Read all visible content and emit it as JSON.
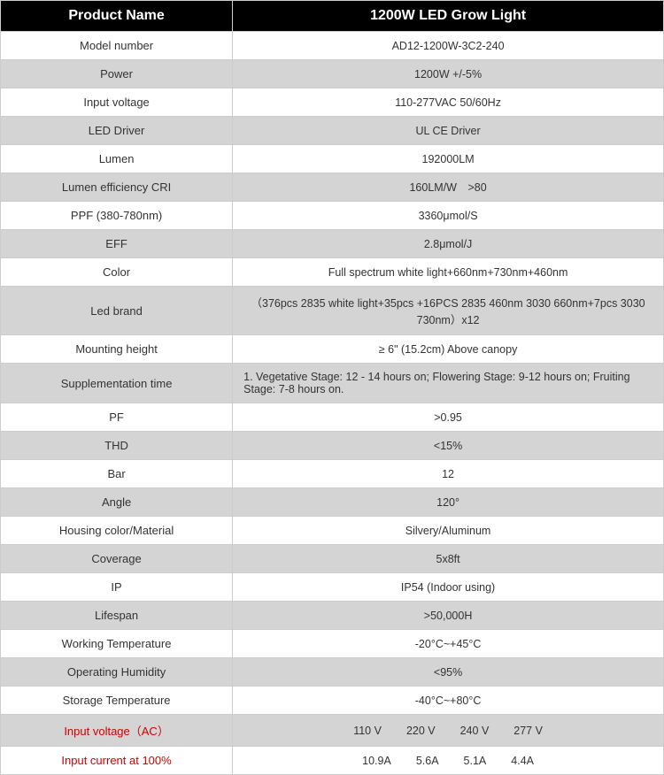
{
  "table": {
    "header": {
      "label": "Product Name",
      "value": "1200W LED Grow Light"
    },
    "colors": {
      "header_bg": "#000000",
      "header_text": "#ffffff",
      "alt_row_bg": "#d4d4d4",
      "white_row_bg": "#ffffff",
      "border": "#cccccc",
      "text": "#333333",
      "red_text": "#d00000"
    },
    "column_widths": [
      "35%",
      "65%"
    ],
    "rows": [
      {
        "label": "Model number",
        "value": "AD12-1200W-3C2-240",
        "bg": "white"
      },
      {
        "label": "Power",
        "value": "1200W +/-5%",
        "bg": "alt"
      },
      {
        "label": "Input voltage",
        "value": "110-277VAC 50/60Hz",
        "bg": "white"
      },
      {
        "label": "LED Driver",
        "value": "UL CE Driver",
        "bg": "alt"
      },
      {
        "label": "Lumen",
        "value": "192000LM",
        "bg": "white"
      },
      {
        "label": "Lumen efficiency CRI",
        "value": "160LM/W >80",
        "bg": "alt"
      },
      {
        "label": "PPF (380-780nm)",
        "value": "3360μmol/S",
        "bg": "white"
      },
      {
        "label": "EFF",
        "value": "2.8μmol/J",
        "bg": "alt"
      },
      {
        "label": "Color",
        "value": "Full spectrum white light+660nm+730nm+460nm",
        "bg": "white"
      },
      {
        "label": "Led brand",
        "value": "（376pcs 2835 white light+35pcs +16PCS 2835 460nm 3030 660nm+7pcs 3030 730nm）x12",
        "bg": "alt"
      },
      {
        "label": "Mounting height",
        "value": "≥ 6\" (15.2cm) Above canopy",
        "bg": "white"
      },
      {
        "label": "Supplementation time",
        "value": "1. Vegetative Stage: 12 - 14 hours on; Flowering Stage: 9-12 hours on; Fruiting Stage: 7-8 hours on.",
        "bg": "alt",
        "left": true
      },
      {
        "label": "PF",
        "value": ">0.95",
        "bg": "white"
      },
      {
        "label": "THD",
        "value": "<15%",
        "bg": "alt"
      },
      {
        "label": "Bar",
        "value": "12",
        "bg": "white"
      },
      {
        "label": "Angle",
        "value": "120°",
        "bg": "alt"
      },
      {
        "label": "Housing color/Material",
        "value": "Silvery/Aluminum",
        "bg": "white"
      },
      {
        "label": "Coverage",
        "value": "5x8ft",
        "bg": "alt"
      },
      {
        "label": "IP",
        "value": "IP54 (Indoor using)",
        "bg": "white"
      },
      {
        "label": "Lifespan",
        "value": ">50,000H",
        "bg": "alt"
      },
      {
        "label": "Working Temperature",
        "value": "-20°C~+45°C",
        "bg": "white"
      },
      {
        "label": "Operating Humidity",
        "value": "<95%",
        "bg": "alt"
      },
      {
        "label": "Storage Temperature",
        "value": "-40°C~+80°C",
        "bg": "white"
      },
      {
        "label": "Input voltage（AC）",
        "value": "",
        "bg": "alt",
        "red": true,
        "spaced_values": [
          "110 V",
          "220 V",
          "240 V",
          "277 V"
        ]
      },
      {
        "label": "Input current at 100%",
        "value": "",
        "bg": "white",
        "red": true,
        "spaced_values": [
          "10.9A",
          "5.6A",
          "5.1A",
          "4.4A"
        ]
      }
    ]
  }
}
